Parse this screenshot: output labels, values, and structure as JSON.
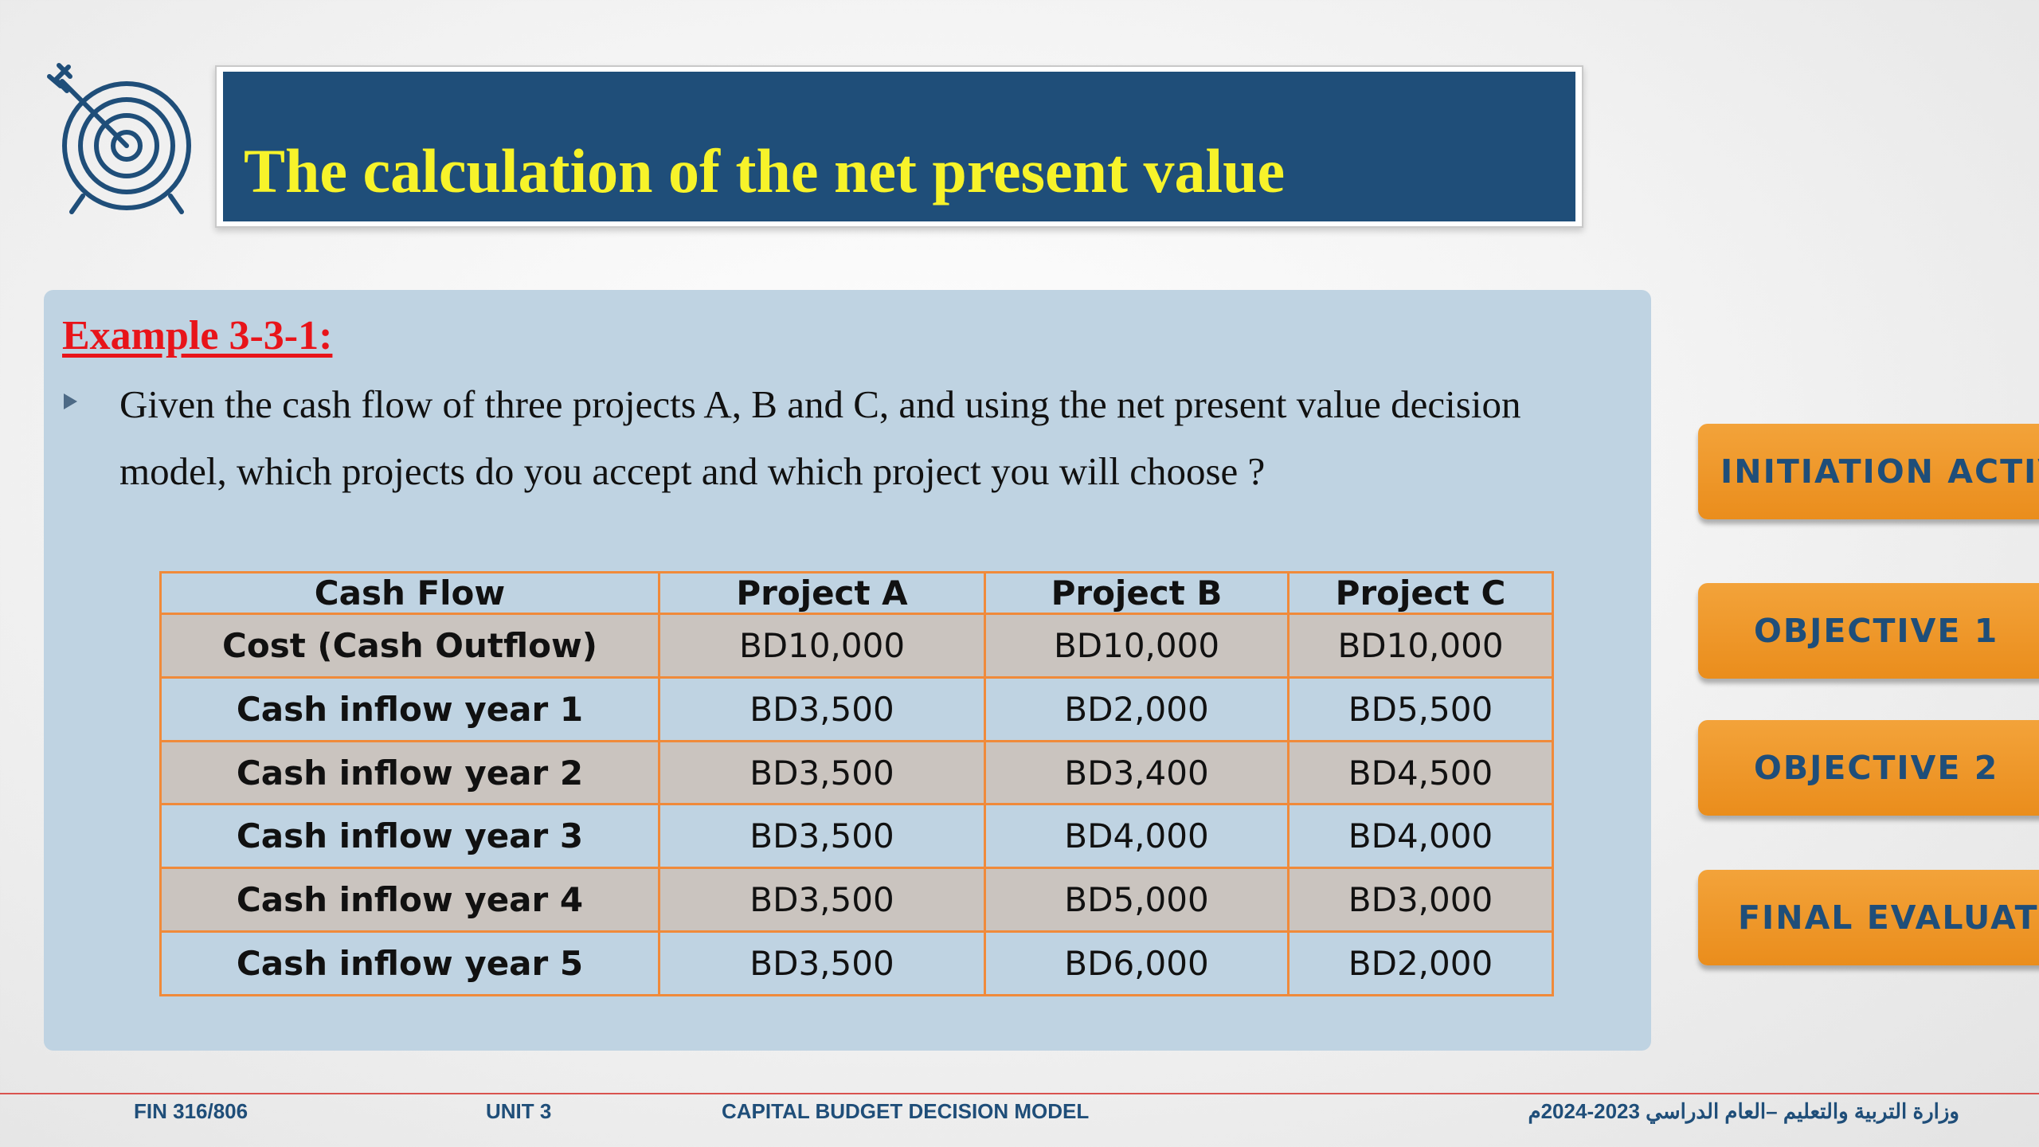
{
  "header": {
    "title": "The calculation of the net present value"
  },
  "example": {
    "title": "Example 3-3-1:",
    "question": "Given the cash flow of three projects A, B and C, and using the net present  value decision model, which projects do you accept and which project  you will choose ?"
  },
  "table": {
    "columns": [
      "Cash Flow",
      "Project A",
      "Project B",
      "Project C"
    ],
    "rows": [
      [
        "Cost (Cash Outflow)",
        "BD10,000",
        "BD10,000",
        "BD10,000"
      ],
      [
        "Cash inflow year 1",
        "BD3,500",
        "BD2,000",
        "BD5,500"
      ],
      [
        "Cash inflow year 2",
        "BD3,500",
        "BD3,400",
        "BD4,500"
      ],
      [
        "Cash inflow year 3",
        "BD3,500",
        "BD4,000",
        "BD4,000"
      ],
      [
        "Cash inflow year 4",
        "BD3,500",
        "BD5,000",
        "BD3,000"
      ],
      [
        "Cash inflow year 5",
        "BD3,500",
        "BD6,000",
        "BD2,000"
      ]
    ]
  },
  "nav": {
    "initiation": "INITIATION ACTIVIT",
    "objective1": "OBJECTIVE 1",
    "objective2": "OBJECTIVE 2",
    "final": "FINAL EVALUATIO"
  },
  "footer": {
    "course": "FIN 316/806",
    "unit": "UNIT 3",
    "topic": "CAPITAL BUDGET DECISION MODEL",
    "ministry": "وزارة التربية والتعليم –العام الدراسي 2023-2024م"
  },
  "colors": {
    "title_bg": "#1f4e79",
    "title_text": "#f7f32a",
    "example_title": "#e8141a",
    "panel_bg": "#bfd3e2",
    "table_border": "#f08a3a",
    "alt_row": "#cac4bf",
    "nav_button": "#ee9529",
    "nav_text": "#1f4e79"
  },
  "icons": {
    "logo": "target-arrow-icon",
    "bullet": "triangle-bullet-icon"
  }
}
